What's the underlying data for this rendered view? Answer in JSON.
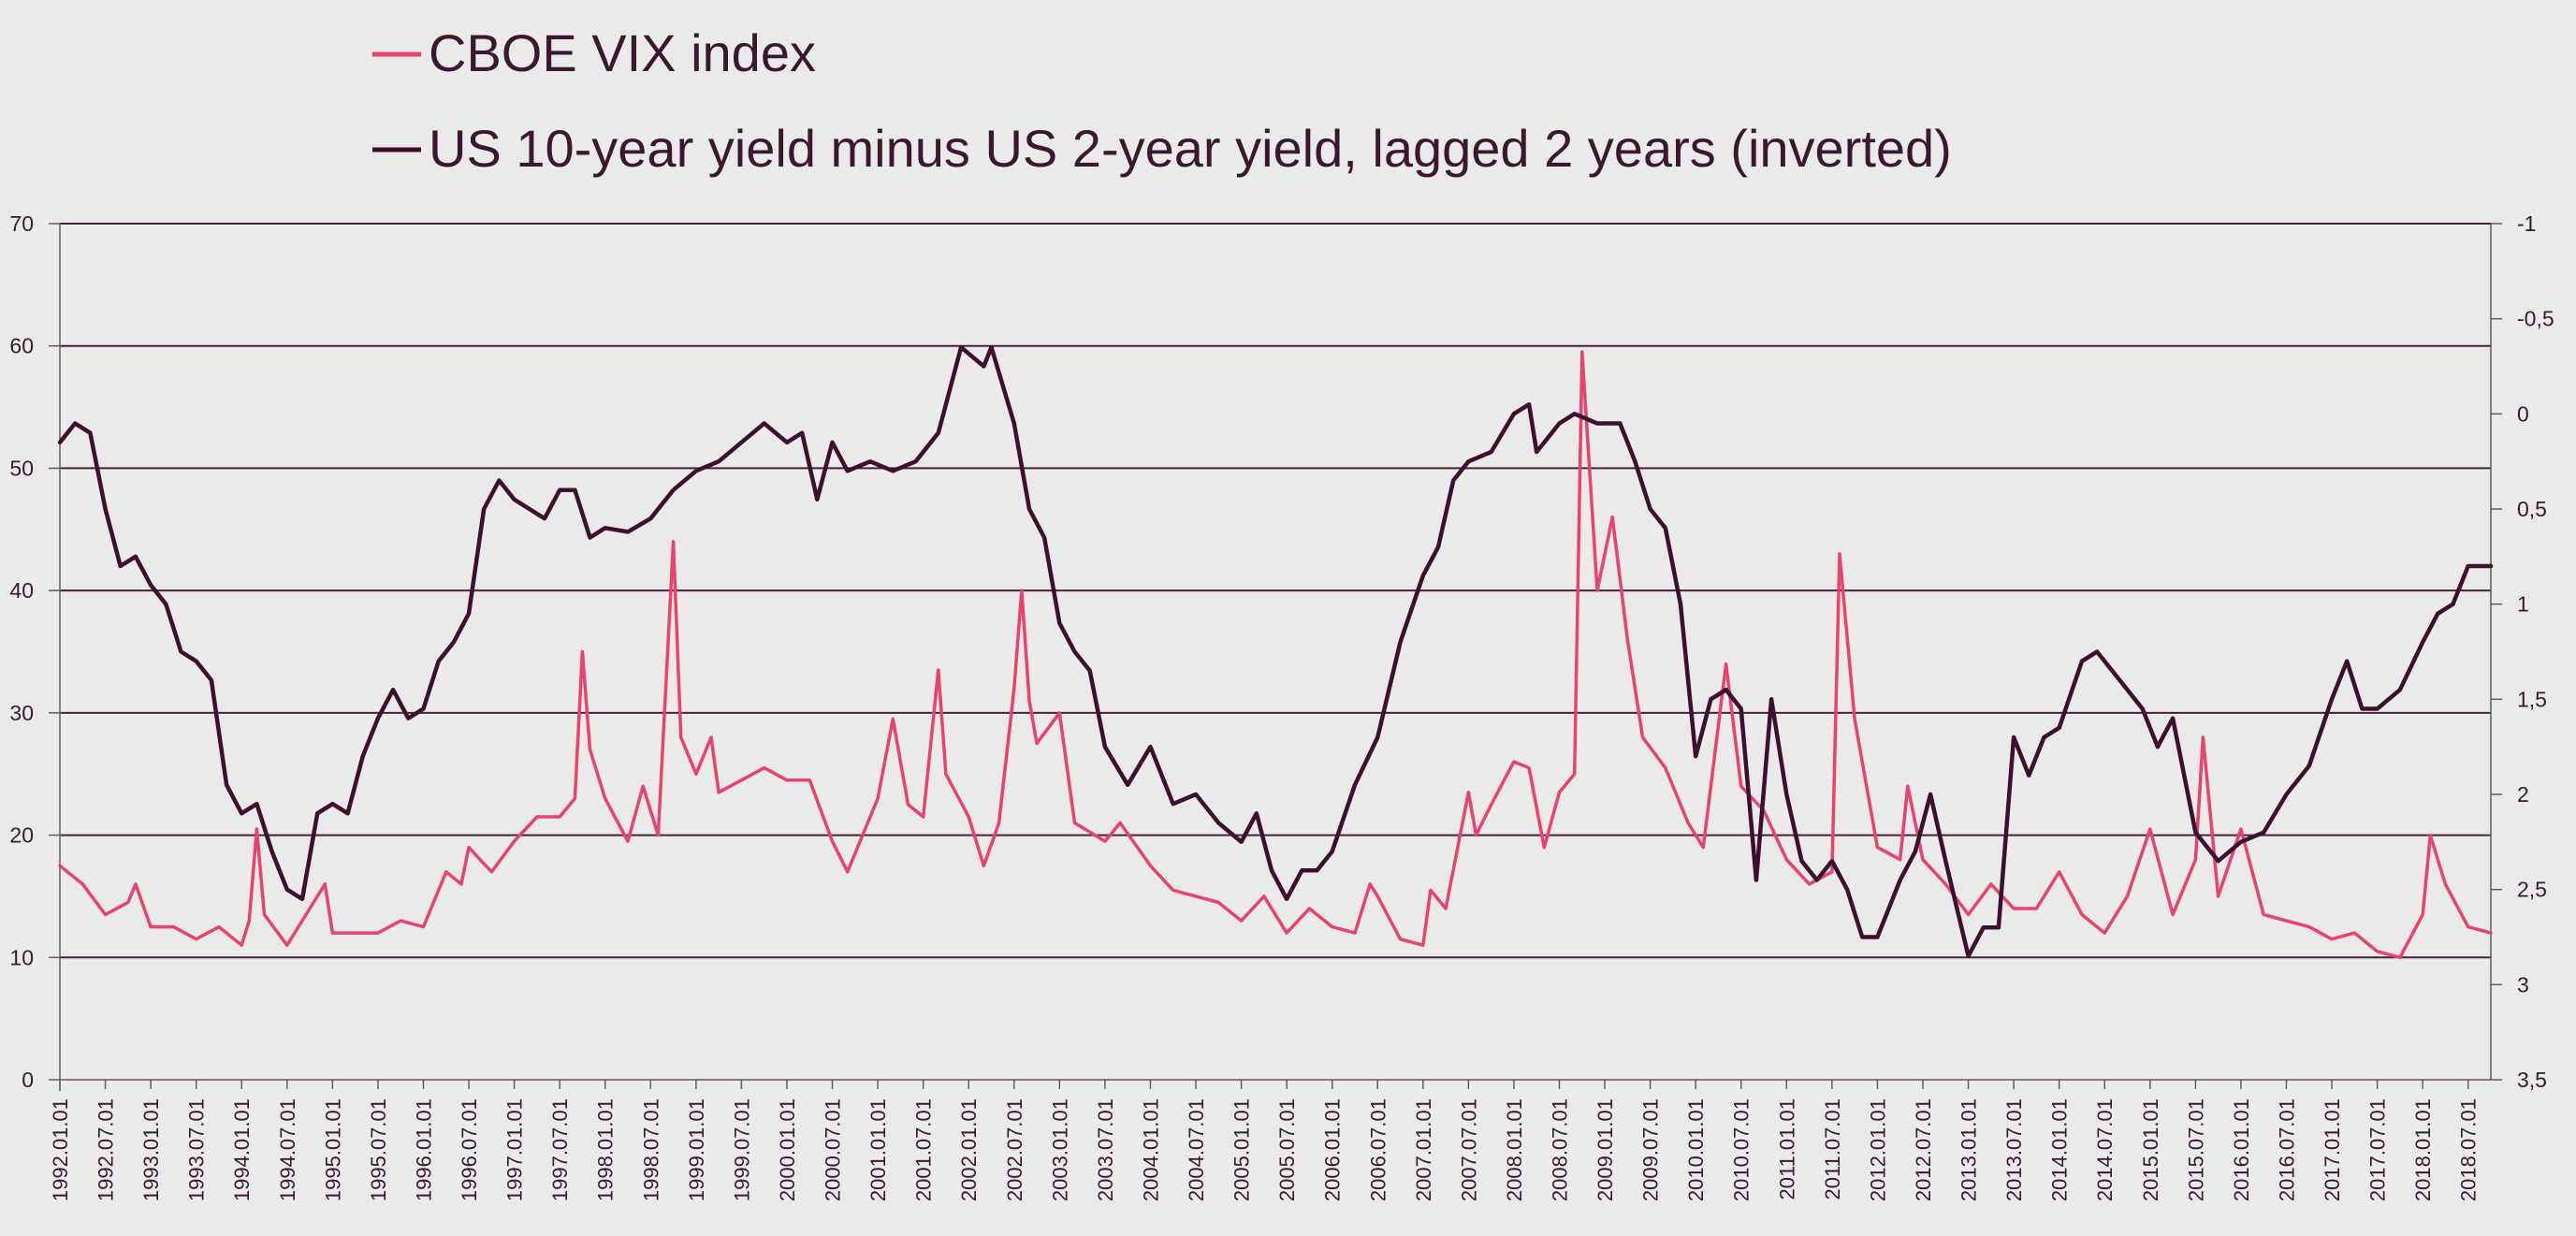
{
  "chart_data": {
    "type": "line",
    "title": "",
    "legend_placement": "top-left",
    "grid": true,
    "x_tick_labels": [
      "1992.01.01",
      "1992.07.01",
      "1993.01.01",
      "1993.07.01",
      "1994.01.01",
      "1994.07.01",
      "1995.01.01",
      "1995.07.01",
      "1996.01.01",
      "1996.07.01",
      "1997.01.01",
      "1997.07.01",
      "1998.01.01",
      "1998.07.01",
      "1999.01.01",
      "1999.07.01",
      "2000.01.01",
      "2000.07.01",
      "2001.01.01",
      "2001.07.01",
      "2002.01.01",
      "2002.07.01",
      "2003.01.01",
      "2003.07.01",
      "2004.01.01",
      "2004.07.01",
      "2005.01.01",
      "2005.07.01",
      "2006.01.01",
      "2006.07.01",
      "2007.01.01",
      "2007.07.01",
      "2008.01.01",
      "2008.07.01",
      "2009.01.01",
      "2009.07.01",
      "2010.01.01",
      "2010.07.01",
      "2011.01.01",
      "2011.07.01",
      "2012.01.01",
      "2012.07.01",
      "2013.01.01",
      "2013.07.01",
      "2014.01.01",
      "2014.07.01",
      "2015.01.01",
      "2015.07.01",
      "2016.01.01",
      "2016.07.01",
      "2017.01.01",
      "2017.07.01",
      "2018.01.01",
      "2018.07.01"
    ],
    "left_axis": {
      "ylim": [
        0,
        70
      ],
      "ticks": [
        "0",
        "10",
        "20",
        "30",
        "40",
        "50",
        "60",
        "70"
      ]
    },
    "right_axis": {
      "ylim": [
        -1,
        3.5
      ],
      "inverted": true,
      "ticks": [
        "-1",
        "-0,5",
        "0",
        "0,5",
        "1",
        "1,5",
        "2",
        "2,5",
        "3",
        "3,5"
      ]
    },
    "series": [
      {
        "name": "CBOE VIX index",
        "axis": "left",
        "color": "#e8426f",
        "points": [
          [
            "1992.01",
            17.5
          ],
          [
            "1992.04",
            16
          ],
          [
            "1992.07",
            13.5
          ],
          [
            "1992.10",
            14.5
          ],
          [
            "1992.11",
            16
          ],
          [
            "1993.01",
            12.5
          ],
          [
            "1993.04",
            12.5
          ],
          [
            "1993.07",
            11.5
          ],
          [
            "1993.10",
            12.5
          ],
          [
            "1994.01",
            11
          ],
          [
            "1994.02",
            13
          ],
          [
            "1994.03",
            20.5
          ],
          [
            "1994.04",
            13.5
          ],
          [
            "1994.07",
            11
          ],
          [
            "1994.10",
            14
          ],
          [
            "1994.12",
            16
          ],
          [
            "1995.01",
            12
          ],
          [
            "1995.04",
            12
          ],
          [
            "1995.07",
            12
          ],
          [
            "1995.10",
            13
          ],
          [
            "1996.01",
            12.5
          ],
          [
            "1996.04",
            17
          ],
          [
            "1996.06",
            16
          ],
          [
            "1996.07",
            19
          ],
          [
            "1996.10",
            17
          ],
          [
            "1997.01",
            19.5
          ],
          [
            "1997.04",
            21.5
          ],
          [
            "1997.07",
            21.5
          ],
          [
            "1997.09",
            23
          ],
          [
            "1997.10",
            35
          ],
          [
            "1997.11",
            27
          ],
          [
            "1998.01",
            23
          ],
          [
            "1998.04",
            19.5
          ],
          [
            "1998.06",
            24
          ],
          [
            "1998.08",
            20
          ],
          [
            "1998.10",
            44
          ],
          [
            "1998.11",
            28
          ],
          [
            "1999.01",
            25
          ],
          [
            "1999.03",
            28
          ],
          [
            "1999.04",
            23.5
          ],
          [
            "1999.07",
            24.5
          ],
          [
            "1999.10",
            25.5
          ],
          [
            "2000.01",
            24.5
          ],
          [
            "2000.04",
            24.5
          ],
          [
            "2000.07",
            19.5
          ],
          [
            "2000.09",
            17
          ],
          [
            "2001.01",
            23
          ],
          [
            "2001.03",
            29.5
          ],
          [
            "2001.05",
            22.5
          ],
          [
            "2001.07",
            21.5
          ],
          [
            "2001.09",
            33.5
          ],
          [
            "2001.10",
            25
          ],
          [
            "2002.01",
            21.5
          ],
          [
            "2002.03",
            17.5
          ],
          [
            "2002.05",
            21
          ],
          [
            "2002.07",
            32
          ],
          [
            "2002.08",
            40
          ],
          [
            "2002.09",
            31
          ],
          [
            "2002.10",
            27.5
          ],
          [
            "2003.01",
            30
          ],
          [
            "2003.03",
            21
          ],
          [
            "2003.07",
            19.5
          ],
          [
            "2003.09",
            21
          ],
          [
            "2004.01",
            17.5
          ],
          [
            "2004.04",
            15.5
          ],
          [
            "2004.07",
            15
          ],
          [
            "2004.10",
            14.5
          ],
          [
            "2005.01",
            13
          ],
          [
            "2005.04",
            15
          ],
          [
            "2005.07",
            12
          ],
          [
            "2005.10",
            14
          ],
          [
            "2006.01",
            12.5
          ],
          [
            "2006.04",
            12
          ],
          [
            "2006.06",
            16
          ],
          [
            "2006.07",
            15
          ],
          [
            "2006.10",
            11.5
          ],
          [
            "2007.01",
            11
          ],
          [
            "2007.02",
            15.5
          ],
          [
            "2007.04",
            14
          ],
          [
            "2007.07",
            23.5
          ],
          [
            "2007.08",
            20
          ],
          [
            "2007.10",
            22.5
          ],
          [
            "2008.01",
            26
          ],
          [
            "2008.03",
            25.5
          ],
          [
            "2008.05",
            19
          ],
          [
            "2008.07",
            23.5
          ],
          [
            "2008.09",
            25
          ],
          [
            "2008.10",
            59.5
          ],
          [
            "2008.12",
            40
          ],
          [
            "2009.02",
            46
          ],
          [
            "2009.04",
            36
          ],
          [
            "2009.06",
            28
          ],
          [
            "2009.09",
            25.5
          ],
          [
            "2009.12",
            21
          ],
          [
            "2010.02",
            19
          ],
          [
            "2010.05",
            34
          ],
          [
            "2010.07",
            24
          ],
          [
            "2010.10",
            22
          ],
          [
            "2011.01",
            18
          ],
          [
            "2011.04",
            16
          ],
          [
            "2011.07",
            17
          ],
          [
            "2011.08",
            43
          ],
          [
            "2011.10",
            29.5
          ],
          [
            "2012.01",
            19
          ],
          [
            "2012.04",
            18
          ],
          [
            "2012.05",
            24
          ],
          [
            "2012.07",
            18
          ],
          [
            "2012.10",
            16
          ],
          [
            "2013.01",
            13.5
          ],
          [
            "2013.04",
            16
          ],
          [
            "2013.07",
            14
          ],
          [
            "2013.10",
            14
          ],
          [
            "2014.01",
            17
          ],
          [
            "2014.04",
            13.5
          ],
          [
            "2014.07",
            12
          ],
          [
            "2014.10",
            15
          ],
          [
            "2015.01",
            20.5
          ],
          [
            "2015.04",
            13.5
          ],
          [
            "2015.07",
            18
          ],
          [
            "2015.08",
            28
          ],
          [
            "2015.10",
            15
          ],
          [
            "2016.01",
            20.5
          ],
          [
            "2016.04",
            13.5
          ],
          [
            "2016.07",
            13
          ],
          [
            "2016.10",
            12.5
          ],
          [
            "2017.01",
            11.5
          ],
          [
            "2017.04",
            12
          ],
          [
            "2017.07",
            10.5
          ],
          [
            "2017.10",
            10
          ],
          [
            "2018.01",
            13.5
          ],
          [
            "2018.02",
            20
          ],
          [
            "2018.04",
            16
          ],
          [
            "2018.07",
            12.5
          ],
          [
            "2018.10",
            12
          ]
        ]
      },
      {
        "name": "US 10-year yield minus US 2-year yield, lagged 2 years (inverted)",
        "axis": "right",
        "color": "#3d1030",
        "points": [
          [
            "1992.01",
            0.15
          ],
          [
            "1992.03",
            0.05
          ],
          [
            "1992.05",
            0.1
          ],
          [
            "1992.07",
            0.5
          ],
          [
            "1992.09",
            0.8
          ],
          [
            "1992.11",
            0.75
          ],
          [
            "1993.01",
            0.9
          ],
          [
            "1993.03",
            1.0
          ],
          [
            "1993.05",
            1.25
          ],
          [
            "1993.07",
            1.3
          ],
          [
            "1993.09",
            1.4
          ],
          [
            "1993.11",
            1.95
          ],
          [
            "1994.01",
            2.1
          ],
          [
            "1994.03",
            2.05
          ],
          [
            "1994.05",
            2.3
          ],
          [
            "1994.07",
            2.5
          ],
          [
            "1994.09",
            2.55
          ],
          [
            "1994.11",
            2.1
          ],
          [
            "1995.01",
            2.05
          ],
          [
            "1995.03",
            2.1
          ],
          [
            "1995.05",
            1.8
          ],
          [
            "1995.07",
            1.6
          ],
          [
            "1995.09",
            1.45
          ],
          [
            "1995.11",
            1.6
          ],
          [
            "1996.01",
            1.55
          ],
          [
            "1996.03",
            1.3
          ],
          [
            "1996.05",
            1.2
          ],
          [
            "1996.07",
            1.05
          ],
          [
            "1996.09",
            0.5
          ],
          [
            "1996.11",
            0.35
          ],
          [
            "1997.01",
            0.45
          ],
          [
            "1997.03",
            0.5
          ],
          [
            "1997.05",
            0.55
          ],
          [
            "1997.07",
            0.4
          ],
          [
            "1997.09",
            0.4
          ],
          [
            "1997.11",
            0.65
          ],
          [
            "1998.01",
            0.6
          ],
          [
            "1998.04",
            0.62
          ],
          [
            "1998.07",
            0.55
          ],
          [
            "1998.10",
            0.4
          ],
          [
            "1999.01",
            0.3
          ],
          [
            "1999.04",
            0.25
          ],
          [
            "1999.07",
            0.15
          ],
          [
            "1999.10",
            0.05
          ],
          [
            "2000.01",
            0.15
          ],
          [
            "2000.03",
            0.1
          ],
          [
            "2000.05",
            0.45
          ],
          [
            "2000.07",
            0.15
          ],
          [
            "2000.09",
            0.3
          ],
          [
            "2000.12",
            0.25
          ],
          [
            "2001.03",
            0.3
          ],
          [
            "2001.06",
            0.25
          ],
          [
            "2001.09",
            0.1
          ],
          [
            "2001.12",
            -0.35
          ],
          [
            "2002.03",
            -0.25
          ],
          [
            "2002.04",
            -0.35
          ],
          [
            "2002.07",
            0.05
          ],
          [
            "2002.09",
            0.5
          ],
          [
            "2002.11",
            0.65
          ],
          [
            "2003.01",
            1.1
          ],
          [
            "2003.03",
            1.25
          ],
          [
            "2003.05",
            1.35
          ],
          [
            "2003.07",
            1.75
          ],
          [
            "2003.10",
            1.95
          ],
          [
            "2004.01",
            1.75
          ],
          [
            "2004.04",
            2.05
          ],
          [
            "2004.07",
            2.0
          ],
          [
            "2004.10",
            2.15
          ],
          [
            "2005.01",
            2.25
          ],
          [
            "2005.03",
            2.1
          ],
          [
            "2005.05",
            2.4
          ],
          [
            "2005.07",
            2.55
          ],
          [
            "2005.09",
            2.4
          ],
          [
            "2005.11",
            2.4
          ],
          [
            "2006.01",
            2.3
          ],
          [
            "2006.04",
            1.95
          ],
          [
            "2006.07",
            1.7
          ],
          [
            "2006.10",
            1.2
          ],
          [
            "2007.01",
            0.85
          ],
          [
            "2007.03",
            0.7
          ],
          [
            "2007.05",
            0.35
          ],
          [
            "2007.07",
            0.25
          ],
          [
            "2007.10",
            0.2
          ],
          [
            "2008.01",
            0.0
          ],
          [
            "2008.03",
            -0.05
          ],
          [
            "2008.04",
            0.2
          ],
          [
            "2008.07",
            0.05
          ],
          [
            "2008.09",
            0.0
          ],
          [
            "2008.12",
            0.05
          ],
          [
            "2009.03",
            0.05
          ],
          [
            "2009.05",
            0.25
          ],
          [
            "2009.07",
            0.5
          ],
          [
            "2009.09",
            0.6
          ],
          [
            "2009.11",
            1.0
          ],
          [
            "2010.01",
            1.8
          ],
          [
            "2010.03",
            1.5
          ],
          [
            "2010.05",
            1.45
          ],
          [
            "2010.07",
            1.55
          ],
          [
            "2010.09",
            2.45
          ],
          [
            "2010.11",
            1.5
          ],
          [
            "2011.01",
            2.0
          ],
          [
            "2011.03",
            2.35
          ],
          [
            "2011.05",
            2.45
          ],
          [
            "2011.07",
            2.35
          ],
          [
            "2011.09",
            2.5
          ],
          [
            "2011.11",
            2.75
          ],
          [
            "2012.01",
            2.75
          ],
          [
            "2012.04",
            2.45
          ],
          [
            "2012.06",
            2.3
          ],
          [
            "2012.08",
            2.0
          ],
          [
            "2012.10",
            2.35
          ],
          [
            "2013.01",
            2.85
          ],
          [
            "2013.03",
            2.7
          ],
          [
            "2013.05",
            2.7
          ],
          [
            "2013.07",
            1.7
          ],
          [
            "2013.09",
            1.9
          ],
          [
            "2013.11",
            1.7
          ],
          [
            "2014.01",
            1.65
          ],
          [
            "2014.04",
            1.3
          ],
          [
            "2014.06",
            1.25
          ],
          [
            "2014.09",
            1.4
          ],
          [
            "2014.12",
            1.55
          ],
          [
            "2015.02",
            1.75
          ],
          [
            "2015.04",
            1.6
          ],
          [
            "2015.07",
            2.2
          ],
          [
            "2015.10",
            2.35
          ],
          [
            "2016.01",
            2.25
          ],
          [
            "2016.04",
            2.2
          ],
          [
            "2016.07",
            2.0
          ],
          [
            "2016.10",
            1.85
          ],
          [
            "2017.01",
            1.5
          ],
          [
            "2017.03",
            1.3
          ],
          [
            "2017.05",
            1.55
          ],
          [
            "2017.07",
            1.55
          ],
          [
            "2017.10",
            1.45
          ],
          [
            "2018.01",
            1.2
          ],
          [
            "2018.03",
            1.05
          ],
          [
            "2018.05",
            1.0
          ],
          [
            "2018.07",
            0.8
          ],
          [
            "2018.10",
            0.8
          ]
        ]
      }
    ]
  }
}
